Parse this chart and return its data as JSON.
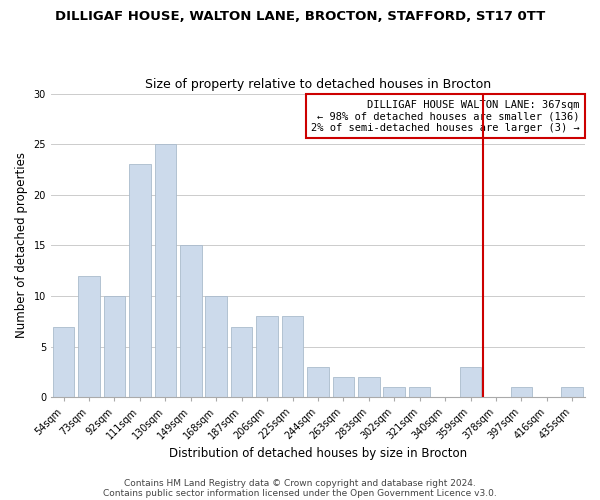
{
  "title": "DILLIGAF HOUSE, WALTON LANE, BROCTON, STAFFORD, ST17 0TT",
  "subtitle": "Size of property relative to detached houses in Brocton",
  "xlabel": "Distribution of detached houses by size in Brocton",
  "ylabel": "Number of detached properties",
  "bar_labels": [
    "54sqm",
    "73sqm",
    "92sqm",
    "111sqm",
    "130sqm",
    "149sqm",
    "168sqm",
    "187sqm",
    "206sqm",
    "225sqm",
    "244sqm",
    "263sqm",
    "283sqm",
    "302sqm",
    "321sqm",
    "340sqm",
    "359sqm",
    "378sqm",
    "397sqm",
    "416sqm",
    "435sqm"
  ],
  "bar_values": [
    7,
    12,
    10,
    23,
    25,
    15,
    10,
    7,
    8,
    8,
    3,
    2,
    2,
    1,
    1,
    0,
    3,
    0,
    1,
    0,
    1
  ],
  "bar_color": "#ccdaeb",
  "bar_edge_color": "#aabbcc",
  "vline_x_index": 16,
  "vline_color": "#cc0000",
  "annotation_title": "DILLIGAF HOUSE WALTON LANE: 367sqm",
  "annotation_line1": "← 98% of detached houses are smaller (136)",
  "annotation_line2": "2% of semi-detached houses are larger (3) →",
  "annotation_box_color": "#ffffff",
  "annotation_box_edge": "#cc0000",
  "ylim": [
    0,
    30
  ],
  "yticks": [
    0,
    5,
    10,
    15,
    20,
    25,
    30
  ],
  "footer1": "Contains HM Land Registry data © Crown copyright and database right 2024.",
  "footer2": "Contains public sector information licensed under the Open Government Licence v3.0.",
  "bg_color": "#ffffff",
  "grid_color": "#cccccc",
  "title_fontsize": 9.5,
  "subtitle_fontsize": 9,
  "axis_label_fontsize": 8.5,
  "tick_fontsize": 7,
  "annotation_fontsize": 7.5,
  "footer_fontsize": 6.5
}
